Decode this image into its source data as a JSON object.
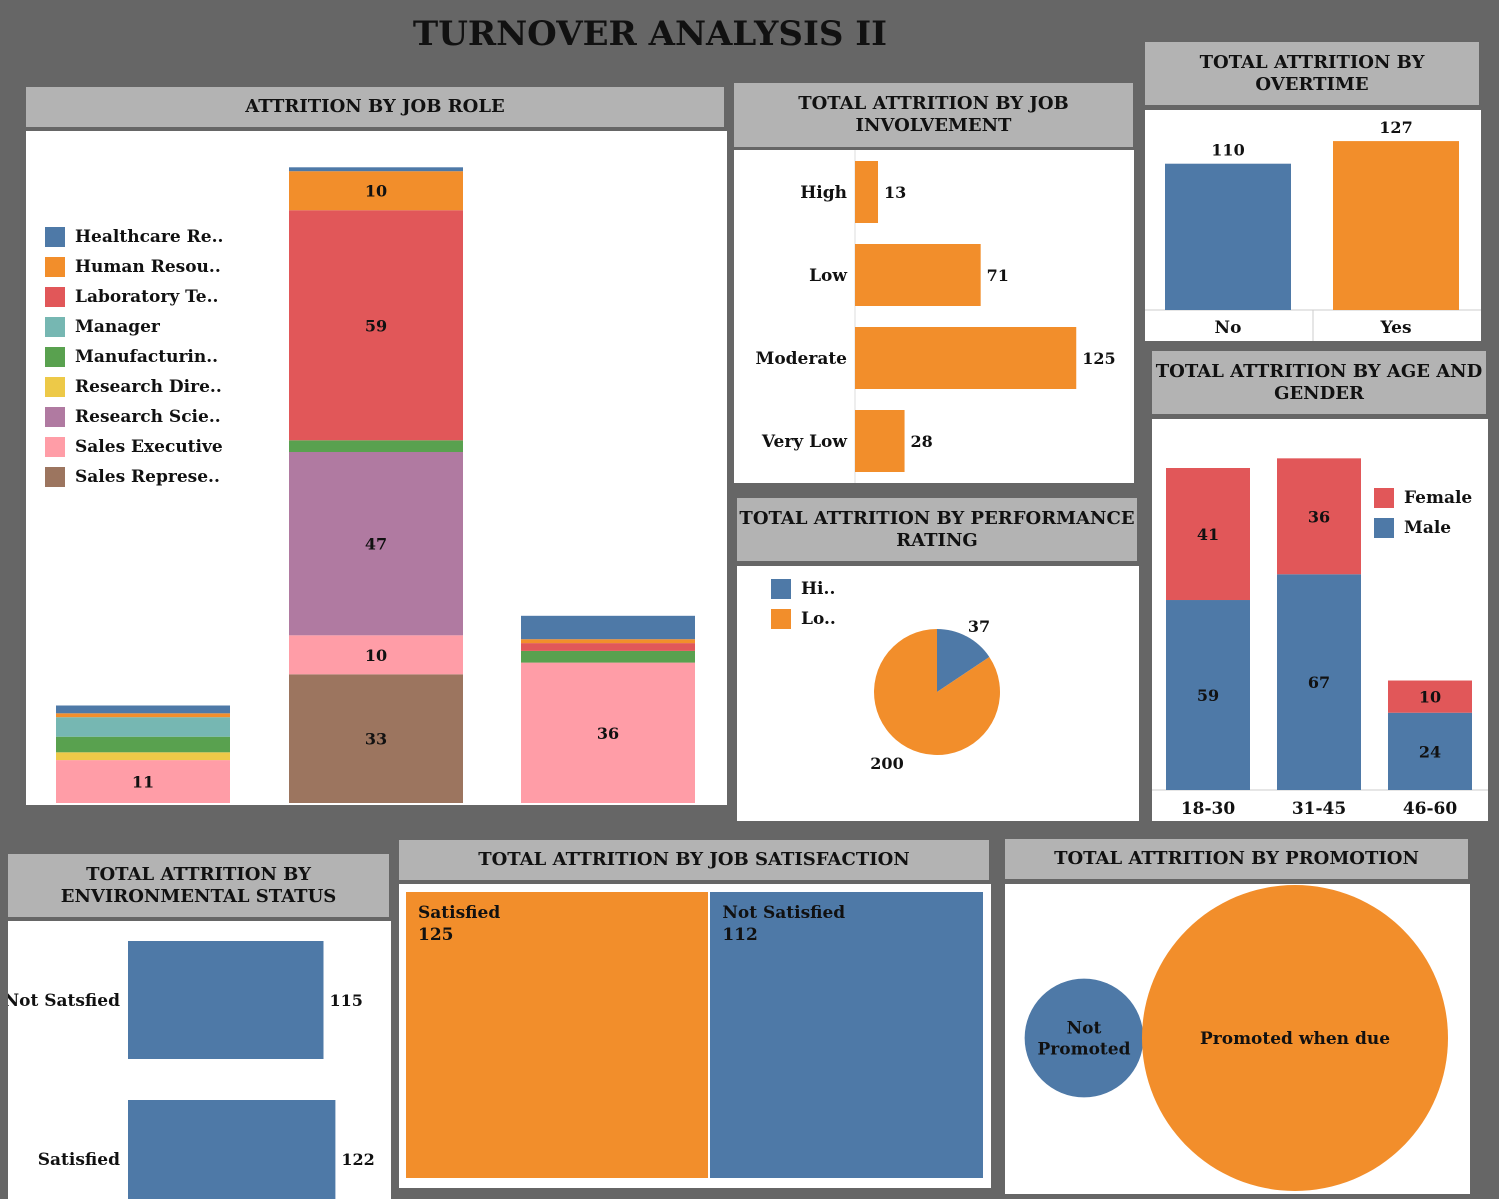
{
  "page": {
    "title": "TURNOVER ANALYSIS II"
  },
  "colors": {
    "blue": "#4e79a7",
    "orange": "#f28e2b",
    "red": "#e15759",
    "teal": "#76b7b2",
    "green": "#59a14f",
    "yellow": "#edc948",
    "purple": "#b07aa1",
    "pink": "#ff9da7",
    "brown": "#9c755f"
  },
  "panels": {
    "job_role": {
      "title": "ATTRITION BY JOB ROLE"
    },
    "job_involvement": {
      "title": "TOTAL ATTRITION BY JOB INVOLVEMENT"
    },
    "overtime": {
      "title": "TOTAL ATTRITION BY OVERTIME"
    },
    "performance": {
      "title": "TOTAL ATTRITION BY PERFORMANCE RATING"
    },
    "age_gender": {
      "title": "TOTAL ATTRITION BY AGE AND GENDER"
    },
    "environment": {
      "title": "TOTAL ATTRITION BY ENVIRONMENTAL STATUS"
    },
    "job_satisfaction": {
      "title": "TOTAL ATTRITION BY JOB SATISFACTION"
    },
    "promotion": {
      "title": "TOTAL ATTRITION BY PROMOTION"
    }
  },
  "chart_data": [
    {
      "id": "job_role",
      "type": "bar",
      "stacked": true,
      "categories": [
        "",
        "",
        ""
      ],
      "legend": [
        "Healthcare Re..",
        "Human Resou..",
        "Laboratory Te..",
        "Manager",
        "Manufacturin..",
        "Research Dire..",
        "Research Scie..",
        "Sales Executive",
        "Sales Represe.."
      ],
      "series": [
        {
          "name": "Sales Represe..",
          "color": "#9c755f",
          "values": [
            0,
            33,
            0
          ]
        },
        {
          "name": "Sales Executive",
          "color": "#ff9da7",
          "values": [
            11,
            10,
            36
          ]
        },
        {
          "name": "Research Scie..",
          "color": "#b07aa1",
          "values": [
            0,
            47,
            0
          ]
        },
        {
          "name": "Research Dire..",
          "color": "#edc948",
          "values": [
            2,
            0,
            0
          ]
        },
        {
          "name": "Manufacturin..",
          "color": "#59a14f",
          "values": [
            4,
            3,
            3
          ]
        },
        {
          "name": "Manager",
          "color": "#76b7b2",
          "values": [
            5,
            0,
            0
          ]
        },
        {
          "name": "Laboratory Te..",
          "color": "#e15759",
          "values": [
            0,
            59,
            2
          ]
        },
        {
          "name": "Human Resou..",
          "color": "#f28e2b",
          "values": [
            1,
            10,
            1
          ]
        },
        {
          "name": "Healthcare Re..",
          "color": "#4e79a7",
          "values": [
            2,
            1,
            6
          ]
        }
      ],
      "labels_shown": [
        [
          11
        ],
        [
          33,
          10,
          47,
          59,
          10
        ],
        [
          36
        ]
      ],
      "ylim": [
        0,
        165
      ]
    },
    {
      "id": "job_involvement",
      "type": "bar",
      "orientation": "horizontal",
      "categories": [
        "High",
        "Low",
        "Moderate",
        "Very Low"
      ],
      "values": [
        13,
        71,
        125,
        28
      ],
      "xlim": [
        0,
        140
      ]
    },
    {
      "id": "overtime",
      "type": "bar",
      "categories": [
        "No",
        "Yes"
      ],
      "values": [
        110,
        127
      ],
      "ylim": [
        0,
        135
      ]
    },
    {
      "id": "performance",
      "type": "pie",
      "legend": [
        "Hi..",
        "Lo.."
      ],
      "labels": [
        "Hi..",
        "Lo.."
      ],
      "values": [
        37,
        200
      ]
    },
    {
      "id": "age_gender",
      "type": "bar",
      "stacked": true,
      "categories": [
        "18-30",
        "31-45",
        "46-60"
      ],
      "legend": [
        "Female",
        "Male"
      ],
      "series": [
        {
          "name": "Male",
          "values": [
            59,
            67,
            24
          ]
        },
        {
          "name": "Female",
          "values": [
            41,
            36,
            10
          ]
        }
      ],
      "ylim": [
        0,
        107
      ]
    },
    {
      "id": "environment",
      "type": "bar",
      "orientation": "horizontal",
      "categories": [
        "Not Satsfied",
        "Satisfied"
      ],
      "values": [
        115,
        122
      ],
      "xlim": [
        0,
        145
      ]
    },
    {
      "id": "job_satisfaction",
      "type": "table",
      "labels": [
        "Satisfied",
        "Not Satisfied"
      ],
      "values": [
        125,
        112
      ]
    },
    {
      "id": "promotion",
      "type": "scatter",
      "labels": [
        "Not\nPromoted",
        "Promoted when due"
      ],
      "values": [
        31,
        206
      ]
    }
  ]
}
